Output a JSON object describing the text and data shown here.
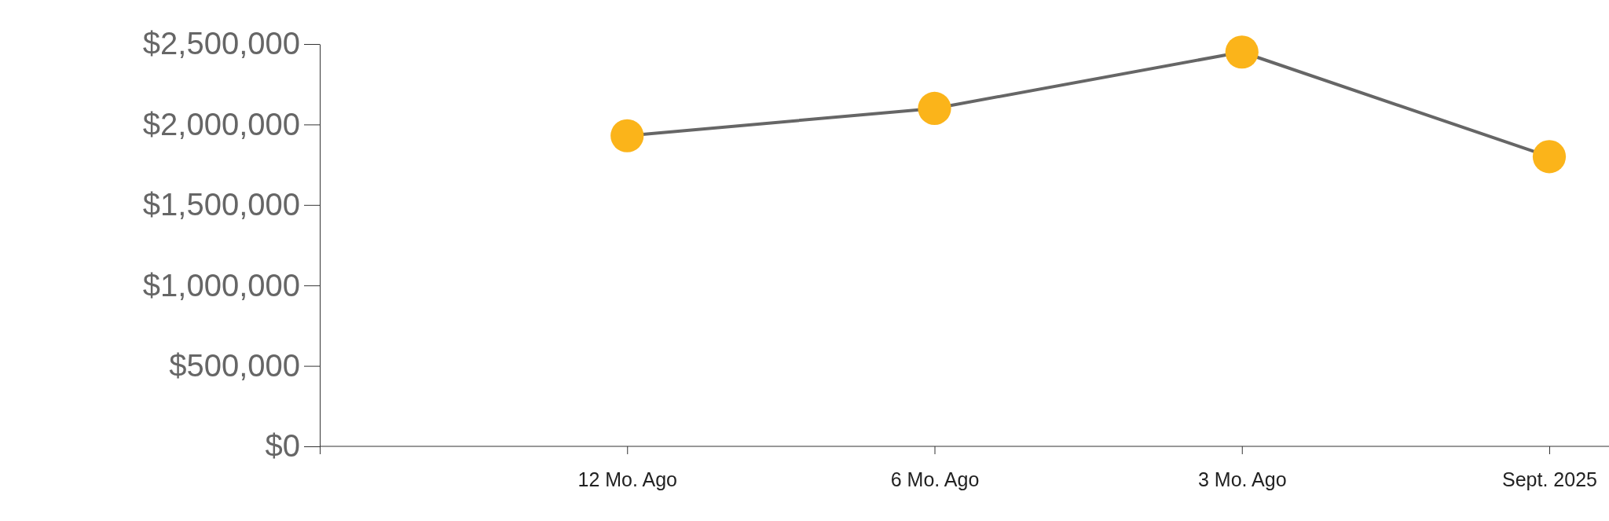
{
  "chart_data": {
    "type": "line",
    "categories": [
      null,
      "12 Mo. Ago",
      "6 Mo. Ago",
      "3 Mo. Ago",
      "Sept. 2025"
    ],
    "series": [
      {
        "color": "#666666",
        "colors": [
          null,
          "#fbb41a",
          "#fbb41a",
          "#fbb41a",
          "#fbb41a"
        ],
        "values": [
          null,
          1930000,
          2100000,
          2450000,
          1800000
        ]
      }
    ],
    "ylim": [
      0,
      2500000
    ],
    "yticks": [
      {
        "value": 0,
        "label": "$0"
      },
      {
        "value": 500000,
        "label": "$500,000"
      },
      {
        "value": 1000000,
        "label": "$1,000,000"
      },
      {
        "value": 1500000,
        "label": "$1,500,000"
      },
      {
        "value": 2000000,
        "label": "$2,000,000"
      },
      {
        "value": 2500000,
        "label": "$2,500,000"
      }
    ],
    "marker": "circle",
    "line_style": "solid",
    "grid": false
  }
}
